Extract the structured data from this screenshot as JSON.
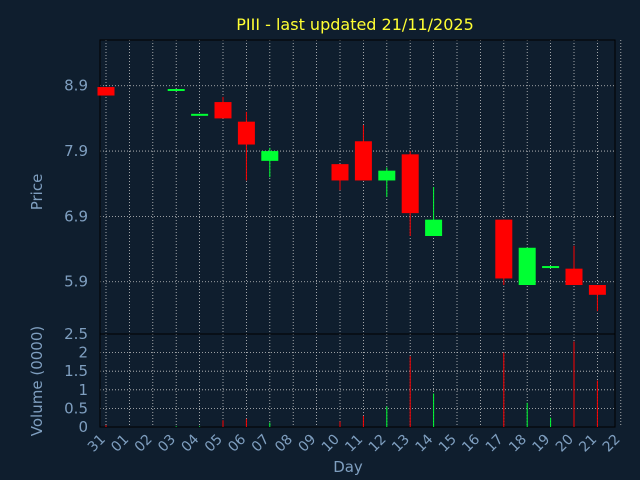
{
  "title": "PIII - last updated 21/11/2025",
  "colors": {
    "background": "#0f1e2e",
    "title": "#ffff33",
    "axis_text": "#7f9fc0",
    "up": "#00ff33",
    "down": "#ff0000",
    "grid": "#c8c8c8"
  },
  "chart_data": [
    {
      "type": "candlestick",
      "ylabel": "Price",
      "ylim": [
        5.1,
        9.6
      ],
      "yticks": [
        "8.9",
        "7.9",
        "6.9",
        "5.9"
      ],
      "ytick_values": [
        8.9,
        7.9,
        6.9,
        5.9
      ],
      "grid": true,
      "categories": [
        "31",
        "01",
        "02",
        "03",
        "04",
        "05",
        "06",
        "07",
        "08",
        "09",
        "10",
        "11",
        "12",
        "13",
        "14",
        "15",
        "16",
        "17",
        "18",
        "19",
        "20",
        "21",
        "22"
      ],
      "candles": [
        {
          "day": "31",
          "open": 8.88,
          "high": 8.88,
          "low": 8.75,
          "close": 8.75
        },
        {
          "day": "03",
          "open": 8.83,
          "high": 8.85,
          "low": 8.83,
          "close": 8.85
        },
        {
          "day": "04",
          "open": 8.45,
          "high": 8.47,
          "low": 8.45,
          "close": 8.47
        },
        {
          "day": "05",
          "open": 8.65,
          "high": 8.73,
          "low": 8.4,
          "close": 8.4
        },
        {
          "day": "06",
          "open": 8.35,
          "high": 8.5,
          "low": 7.45,
          "close": 8.0
        },
        {
          "day": "07",
          "open": 7.75,
          "high": 7.95,
          "low": 7.5,
          "close": 7.9
        },
        {
          "day": "10",
          "open": 7.7,
          "high": 7.7,
          "low": 7.3,
          "close": 7.45
        },
        {
          "day": "11",
          "open": 8.05,
          "high": 8.3,
          "low": 7.45,
          "close": 7.45
        },
        {
          "day": "12",
          "open": 7.45,
          "high": 7.65,
          "low": 7.2,
          "close": 7.6
        },
        {
          "day": "13",
          "open": 7.85,
          "high": 7.9,
          "low": 6.6,
          "close": 6.95
        },
        {
          "day": "14",
          "open": 6.6,
          "high": 7.35,
          "low": 6.6,
          "close": 6.85
        },
        {
          "day": "17",
          "open": 6.85,
          "high": 6.85,
          "low": 5.85,
          "close": 5.95
        },
        {
          "day": "18",
          "open": 5.85,
          "high": 6.42,
          "low": 5.85,
          "close": 6.42
        },
        {
          "day": "19",
          "open": 6.12,
          "high": 6.14,
          "low": 6.12,
          "close": 6.14
        },
        {
          "day": "20",
          "open": 6.1,
          "high": 6.45,
          "low": 5.85,
          "close": 5.85
        },
        {
          "day": "21",
          "open": 5.85,
          "high": 5.85,
          "low": 5.45,
          "close": 5.7
        }
      ]
    },
    {
      "type": "bar",
      "ylabel": "Volume (0000)",
      "xlabel": "Day",
      "ylim": [
        0,
        2.5
      ],
      "yticks": [
        "2.5",
        "2",
        "1.5",
        "1",
        "0.5",
        "0"
      ],
      "ytick_values": [
        2.5,
        2,
        1.5,
        1,
        0.5,
        0
      ],
      "grid": true,
      "categories": [
        "31",
        "01",
        "02",
        "03",
        "04",
        "05",
        "06",
        "07",
        "08",
        "09",
        "10",
        "11",
        "12",
        "13",
        "14",
        "15",
        "16",
        "17",
        "18",
        "19",
        "20",
        "21",
        "22"
      ],
      "bars": [
        {
          "day": "31",
          "value": 0.05,
          "color": "down"
        },
        {
          "day": "03",
          "value": 0.02,
          "color": "up"
        },
        {
          "day": "04",
          "value": 0.02,
          "color": "up"
        },
        {
          "day": "05",
          "value": 0.18,
          "color": "down"
        },
        {
          "day": "06",
          "value": 0.22,
          "color": "down"
        },
        {
          "day": "07",
          "value": 0.12,
          "color": "up"
        },
        {
          "day": "10",
          "value": 0.15,
          "color": "down"
        },
        {
          "day": "11",
          "value": 0.3,
          "color": "down"
        },
        {
          "day": "12",
          "value": 0.55,
          "color": "up"
        },
        {
          "day": "13",
          "value": 1.9,
          "color": "down"
        },
        {
          "day": "14",
          "value": 0.9,
          "color": "up"
        },
        {
          "day": "17",
          "value": 2.0,
          "color": "down"
        },
        {
          "day": "18",
          "value": 0.65,
          "color": "up"
        },
        {
          "day": "19",
          "value": 0.25,
          "color": "up"
        },
        {
          "day": "20",
          "value": 2.3,
          "color": "down"
        },
        {
          "day": "21",
          "value": 1.25,
          "color": "down"
        }
      ]
    }
  ]
}
